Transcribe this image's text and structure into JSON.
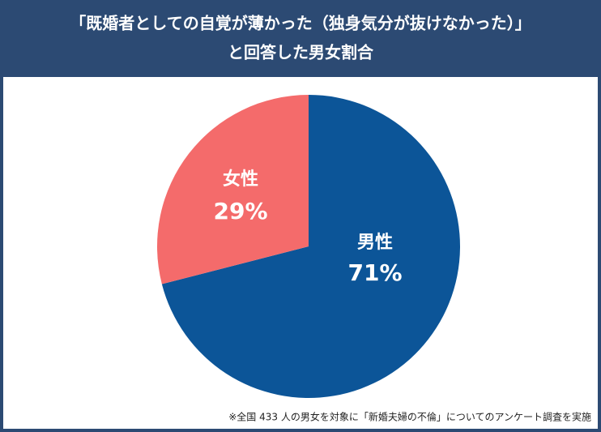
{
  "chart_data": {
    "type": "pie",
    "title": [
      "「既婚者としての自覚が薄かった（独身気分が抜けなかった）」",
      "と回答した男女割合"
    ],
    "categories": [
      "男性",
      "女性"
    ],
    "values": [
      71,
      29
    ],
    "value_labels": [
      "71%",
      "29%"
    ],
    "colors": [
      "#0c5598",
      "#f46b6b"
    ],
    "note": "※全国 433 人の男女を対象に「新婚夫婦の不倫」についてのアンケート調査を実施"
  }
}
